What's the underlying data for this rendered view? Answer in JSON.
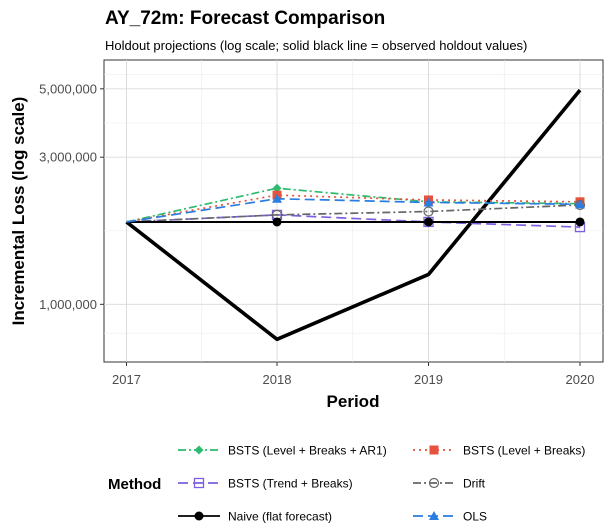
{
  "chart_data": {
    "type": "line",
    "title": "AY_72m: Forecast Comparison",
    "subtitle": "Holdout projections (log scale; solid black line = observed holdout values)",
    "xlabel": "Period",
    "ylabel": "Incremental Loss (log scale)",
    "x": [
      2017,
      2018,
      2019,
      2020
    ],
    "x_tick_labels": [
      "2017",
      "2018",
      "2019",
      "2020"
    ],
    "ylim": [
      650000,
      6200000
    ],
    "y_scale": "log",
    "y_ticks": [
      1000000,
      3000000,
      5000000
    ],
    "y_tick_labels": [
      "1,000,000",
      "3,000,000",
      "5,000,000"
    ],
    "grid": true,
    "legend_title": "Method",
    "legend_position": "bottom",
    "observed": {
      "values": [
        1850000,
        770000,
        1250000,
        4950000
      ],
      "color": "#000000"
    },
    "series": [
      {
        "name": "BSTS (Level + Breaks + AR1)",
        "values": [
          1850000,
          2380000,
          2150000,
          2120000
        ],
        "color": "#2dbb6f",
        "dash": "8,3,2,3",
        "marker": "diamond"
      },
      {
        "name": "BSTS (Level + Breaks)",
        "values": [
          1850000,
          2260000,
          2180000,
          2150000
        ],
        "color": "#e5533c",
        "dash": "2,4",
        "marker": "square"
      },
      {
        "name": "BSTS (Trend + Breaks)",
        "values": [
          1850000,
          1950000,
          1850000,
          1780000
        ],
        "color": "#7f5fe0",
        "dash": "10,5",
        "marker": "open-square"
      },
      {
        "name": "Drift",
        "values": [
          1850000,
          1950000,
          2000000,
          2100000
        ],
        "color": "#666666",
        "dash": "8,3,2,3",
        "marker": "open-circle"
      },
      {
        "name": "Naive (flat forecast)",
        "values": [
          1850000,
          1850000,
          1850000,
          1850000
        ],
        "color": "#000000",
        "dash": "",
        "marker": "filled-circle"
      },
      {
        "name": "OLS",
        "values": [
          1850000,
          2200000,
          2140000,
          2110000
        ],
        "color": "#2a7de1",
        "dash": "10,5",
        "marker": "triangle"
      }
    ]
  }
}
